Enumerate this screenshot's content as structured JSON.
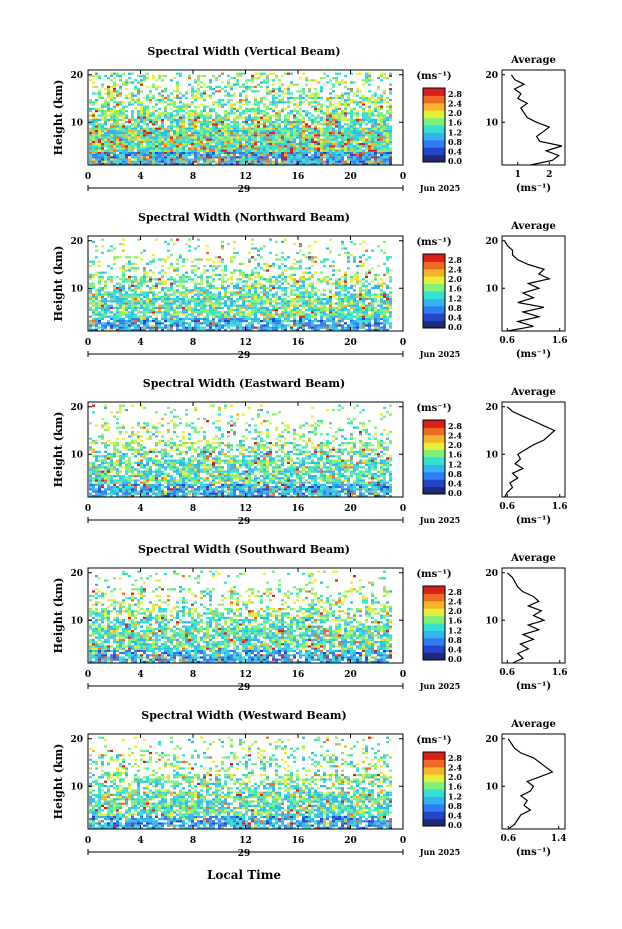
{
  "figure": {
    "x_axis_title": "Local Time",
    "date_label": "Jun 2025",
    "day_label": "29",
    "x_ticks": [
      "0",
      "4",
      "8",
      "12",
      "16",
      "20",
      "0"
    ],
    "y_ticks": [
      "20",
      "10"
    ],
    "y_axis_title": "Height (km)",
    "colorbar_unit": "(ms⁻¹)",
    "colorbar_ticks": [
      "2.8",
      "2.4",
      "2.0",
      "1.6",
      "1.2",
      "0.8",
      "0.4",
      "0.0"
    ],
    "avg_title": "Average",
    "avg_xlabel": "(ms⁻¹)",
    "colors": {
      "scale": [
        "#1e2a78",
        "#2346c8",
        "#2f7df0",
        "#33b6f0",
        "#36e0d0",
        "#7ff07a",
        "#e6f03a",
        "#f5b52a",
        "#f06a23",
        "#d8201c"
      ]
    }
  },
  "chart_data": [
    {
      "type": "heatmap",
      "title": "Spectral Width (Vertical Beam)",
      "xlim": [
        0,
        24
      ],
      "ylim": [
        1,
        21
      ],
      "colorbar_range": [
        0.0,
        3.0
      ],
      "avg_ticks": [
        "1",
        "2"
      ],
      "avg_xlim": [
        0.5,
        2.5
      ],
      "avg_profile": {
        "height": [
          1,
          2,
          3,
          4,
          5,
          6,
          7,
          8,
          9,
          10,
          11,
          12,
          13,
          14,
          15,
          16,
          17,
          18,
          19,
          20
        ],
        "value": [
          1.4,
          2.1,
          2.3,
          1.9,
          2.4,
          1.7,
          1.6,
          1.8,
          2.0,
          1.6,
          1.3,
          1.2,
          1.1,
          1.3,
          1.0,
          1.1,
          0.9,
          1.2,
          0.9,
          0.8
        ]
      }
    },
    {
      "type": "heatmap",
      "title": "Spectral Width (Northward Beam)",
      "xlim": [
        0,
        24
      ],
      "ylim": [
        1,
        21
      ],
      "colorbar_range": [
        0.0,
        3.0
      ],
      "avg_ticks": [
        "0.6",
        "1.6"
      ],
      "avg_xlim": [
        0.5,
        1.7
      ],
      "avg_profile": {
        "height": [
          1,
          2,
          3,
          4,
          5,
          6,
          7,
          8,
          9,
          10,
          11,
          12,
          13,
          14,
          15,
          16,
          17,
          18,
          19,
          20
        ],
        "value": [
          0.6,
          1.1,
          0.8,
          1.2,
          0.9,
          1.3,
          0.8,
          1.1,
          0.9,
          1.2,
          1.0,
          1.4,
          1.2,
          1.3,
          1.0,
          0.8,
          0.7,
          0.7,
          0.6,
          0.55
        ]
      }
    },
    {
      "type": "heatmap",
      "title": "Spectral Width (Eastward Beam)",
      "xlim": [
        0,
        24
      ],
      "ylim": [
        1,
        21
      ],
      "colorbar_range": [
        0.0,
        3.0
      ],
      "avg_ticks": [
        "0.6",
        "1.6"
      ],
      "avg_xlim": [
        0.5,
        1.7
      ],
      "avg_profile": {
        "height": [
          1,
          2,
          3,
          4,
          5,
          6,
          7,
          8,
          9,
          10,
          11,
          12,
          13,
          14,
          15,
          16,
          17,
          18,
          19,
          20
        ],
        "value": [
          0.55,
          0.6,
          0.7,
          0.65,
          0.8,
          0.7,
          0.9,
          0.75,
          0.85,
          0.8,
          0.95,
          1.1,
          1.3,
          1.4,
          1.5,
          1.3,
          1.1,
          0.9,
          0.7,
          0.6
        ]
      }
    },
    {
      "type": "heatmap",
      "title": "Spectral Width (Southward Beam)",
      "xlim": [
        0,
        24
      ],
      "ylim": [
        1,
        21
      ],
      "colorbar_range": [
        0.0,
        3.0
      ],
      "avg_ticks": [
        "0.6",
        "1.6"
      ],
      "avg_xlim": [
        0.5,
        1.7
      ],
      "avg_profile": {
        "height": [
          1,
          2,
          3,
          4,
          5,
          6,
          7,
          8,
          9,
          10,
          11,
          12,
          13,
          14,
          15,
          16,
          17,
          18,
          19,
          20
        ],
        "value": [
          0.7,
          0.9,
          0.8,
          1.0,
          0.85,
          1.1,
          0.9,
          1.2,
          1.0,
          1.3,
          1.1,
          1.25,
          1.0,
          1.2,
          1.1,
          0.9,
          0.8,
          0.75,
          0.7,
          0.6
        ]
      }
    },
    {
      "type": "heatmap",
      "title": "Spectral Width (Westward Beam)",
      "xlim": [
        0,
        24
      ],
      "ylim": [
        1,
        21
      ],
      "colorbar_range": [
        0.0,
        3.0
      ],
      "avg_ticks": [
        "0.6",
        "1.4"
      ],
      "avg_xlim": [
        0.5,
        1.5
      ],
      "avg_profile": {
        "height": [
          1,
          2,
          3,
          4,
          5,
          6,
          7,
          8,
          9,
          10,
          11,
          12,
          13,
          14,
          15,
          16,
          17,
          18,
          19,
          20
        ],
        "value": [
          0.6,
          0.7,
          0.75,
          0.8,
          0.95,
          0.85,
          0.9,
          0.8,
          0.95,
          1.0,
          0.9,
          1.1,
          1.3,
          1.2,
          1.1,
          1.0,
          0.8,
          0.7,
          0.65,
          0.6
        ]
      }
    }
  ]
}
